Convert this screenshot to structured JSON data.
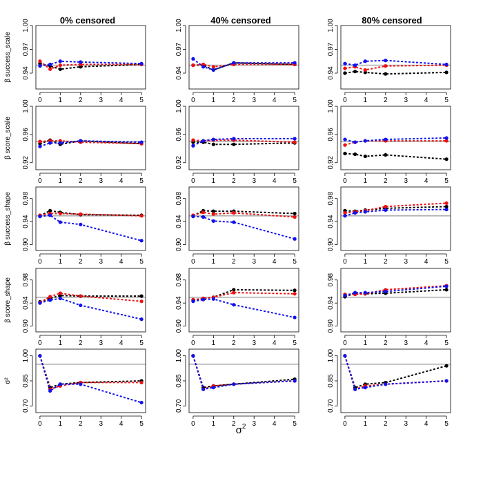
{
  "chart_data": {
    "type": "line",
    "layout": "5x3 grid",
    "column_titles": [
      "0% censored",
      "40% censored",
      "80% censored"
    ],
    "x_ticks": [
      0,
      1,
      2,
      3,
      4,
      5
    ],
    "x_label_base": "σ",
    "x_label_sup": "2",
    "x_values": [
      0,
      0.5,
      1,
      2,
      5
    ],
    "xlim": [
      -0.2,
      5.2
    ],
    "series_colors": {
      "black": "#000000",
      "red": "#ee1111",
      "blue": "#1111ee"
    },
    "reference_color": "#b0b0b0",
    "rows": [
      {
        "ylabel": "β success_scale",
        "ylim": [
          0.92,
          1.0
        ],
        "yticks": [
          0.94,
          0.97,
          1.0
        ],
        "ytick_labels": [
          "0.94",
          "0.97",
          "1.00"
        ],
        "reference": 0.95,
        "panels": [
          {
            "black": [
              0.952,
              0.949,
              0.945,
              0.948,
              0.951
            ],
            "red": [
              0.955,
              0.945,
              0.95,
              0.951,
              0.951
            ],
            "blue": [
              0.949,
              0.951,
              0.955,
              0.954,
              0.952
            ]
          },
          {
            "black": [
              0.95,
              0.95,
              0.944,
              0.953,
              0.951
            ],
            "red": [
              0.95,
              0.951,
              0.948,
              0.951,
              0.951
            ],
            "blue": [
              0.958,
              0.948,
              0.944,
              0.953,
              0.953
            ]
          },
          {
            "black": [
              0.94,
              0.942,
              0.941,
              0.939,
              0.941
            ],
            "red": [
              0.946,
              0.948,
              0.944,
              0.949,
              0.95
            ],
            "blue": [
              0.952,
              0.95,
              0.955,
              0.956,
              0.951
            ]
          }
        ]
      },
      {
        "ylabel": "β score_scale",
        "ylim": [
          0.91,
          1.0
        ],
        "yticks": [
          0.92,
          0.96,
          1.0
        ],
        "ytick_labels": [
          "0.92",
          "0.96",
          "1.00"
        ],
        "reference": 0.95,
        "panels": [
          {
            "black": [
              0.947,
              0.952,
              0.946,
              0.951,
              0.947
            ],
            "red": [
              0.95,
              0.951,
              0.951,
              0.949,
              0.947
            ],
            "blue": [
              0.943,
              0.948,
              0.948,
              0.951,
              0.949
            ]
          },
          {
            "black": [
              0.949,
              0.949,
              0.946,
              0.946,
              0.948
            ],
            "red": [
              0.952,
              0.951,
              0.952,
              0.952,
              0.949
            ],
            "blue": [
              0.944,
              0.951,
              0.953,
              0.954,
              0.954
            ]
          },
          {
            "black": [
              0.933,
              0.932,
              0.929,
              0.931,
              0.925
            ],
            "red": [
              0.945,
              0.949,
              0.951,
              0.951,
              0.951
            ],
            "blue": [
              0.953,
              0.949,
              0.951,
              0.953,
              0.955
            ]
          }
        ]
      },
      {
        "ylabel": "β success_shape",
        "ylim": [
          0.89,
          1.0
        ],
        "yticks": [
          0.9,
          0.94,
          0.98
        ],
        "ytick_labels": [
          "0.90",
          "0.94",
          "0.98"
        ],
        "reference": 0.95,
        "panels": [
          {
            "black": [
              0.95,
              0.959,
              0.956,
              0.952,
              0.951
            ],
            "red": [
              0.951,
              0.954,
              0.954,
              0.953,
              0.95
            ],
            "blue": [
              0.949,
              0.951,
              0.939,
              0.935,
              0.907
            ]
          },
          {
            "black": [
              0.95,
              0.959,
              0.958,
              0.958,
              0.954
            ],
            "red": [
              0.951,
              0.956,
              0.953,
              0.955,
              0.948
            ],
            "blue": [
              0.949,
              0.948,
              0.941,
              0.939,
              0.91
            ]
          },
          {
            "black": [
              0.959,
              0.958,
              0.96,
              0.963,
              0.966
            ],
            "red": [
              0.955,
              0.957,
              0.959,
              0.966,
              0.972
            ],
            "blue": [
              0.95,
              0.955,
              0.957,
              0.96,
              0.961
            ]
          }
        ]
      },
      {
        "ylabel": "β score_shape",
        "ylim": [
          0.89,
          1.0
        ],
        "yticks": [
          0.9,
          0.94,
          0.98
        ],
        "ytick_labels": [
          "0.90",
          "0.94",
          "0.98"
        ],
        "reference": 0.95,
        "panels": [
          {
            "black": [
              0.942,
              0.948,
              0.953,
              0.952,
              0.952
            ],
            "red": [
              0.941,
              0.951,
              0.957,
              0.952,
              0.943
            ],
            "blue": [
              0.94,
              0.945,
              0.948,
              0.936,
              0.912
            ]
          },
          {
            "black": [
              0.945,
              0.948,
              0.95,
              0.963,
              0.962
            ],
            "red": [
              0.946,
              0.948,
              0.95,
              0.958,
              0.956
            ],
            "blue": [
              0.943,
              0.946,
              0.947,
              0.937,
              0.915
            ]
          },
          {
            "black": [
              0.951,
              0.957,
              0.956,
              0.957,
              0.963
            ],
            "red": [
              0.955,
              0.955,
              0.956,
              0.963,
              0.97
            ],
            "blue": [
              0.953,
              0.958,
              0.958,
              0.96,
              0.969
            ]
          }
        ]
      },
      {
        "ylabel": "σ²",
        "ylim": [
          0.66,
          1.04
        ],
        "yticks": [
          0.7,
          0.85,
          1.0
        ],
        "ytick_labels": [
          "0.70",
          "0.85",
          "1.00"
        ],
        "reference": 0.95,
        "panels": [
          {
            "black": [
              1.0,
              0.81,
              0.83,
              0.84,
              0.85
            ],
            "red": [
              1.0,
              0.8,
              0.82,
              0.84,
              0.84
            ],
            "blue": [
              1.0,
              0.79,
              0.83,
              0.83,
              0.72
            ]
          },
          {
            "black": [
              1.0,
              0.81,
              0.82,
              0.83,
              0.86
            ],
            "red": [
              1.0,
              0.8,
              0.82,
              0.83,
              0.85
            ],
            "blue": [
              1.0,
              0.8,
              0.81,
              0.83,
              0.85
            ]
          },
          {
            "black": [
              1.0,
              0.81,
              0.83,
              0.84,
              0.94
            ],
            "red": [
              1.0,
              0.8,
              0.82,
              0.83,
              0.85
            ],
            "blue": [
              1.0,
              0.8,
              0.81,
              0.83,
              0.85
            ]
          }
        ]
      }
    ]
  }
}
